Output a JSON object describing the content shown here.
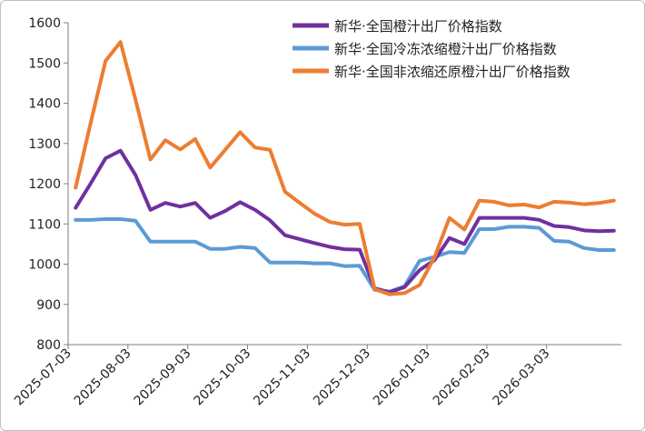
{
  "chart_data": {
    "type": "line",
    "title": "",
    "xlabel": "",
    "ylabel": "",
    "ylim": [
      800,
      1600
    ],
    "yticks": [
      800,
      900,
      1000,
      1100,
      1200,
      1300,
      1400,
      1500,
      1600
    ],
    "xtick_labels": [
      "2025-07-03",
      "2025-08-03",
      "2025-09-03",
      "2025-10-03",
      "2025-11-03",
      "2025-12-03",
      "2026-01-03",
      "2026-02-03",
      "2026-03-03"
    ],
    "xtick_indices": [
      0,
      4,
      8,
      12,
      16,
      20,
      24,
      28,
      32
    ],
    "grid": false,
    "legend_position": "top-right",
    "series": [
      {
        "name": "新华·全国橙汁出厂价格指数",
        "color": "#7030a0",
        "values": [
          1140,
          1200,
          1263,
          1282,
          1222,
          1135,
          1152,
          1143,
          1152,
          1115,
          1132,
          1154,
          1135,
          1109,
          1072,
          1062,
          1052,
          1043,
          1037,
          1036,
          940,
          930,
          943,
          985,
          1010,
          1065,
          1050,
          1115,
          1115,
          1115,
          1115,
          1110,
          1095,
          1092,
          1084,
          1082,
          1083
        ]
      },
      {
        "name": "新华·全国冷冻浓缩橙汁出厂价格指数",
        "color": "#5b9bd5",
        "values": [
          1110,
          1110,
          1112,
          1112,
          1108,
          1056,
          1056,
          1056,
          1056,
          1038,
          1038,
          1043,
          1040,
          1004,
          1004,
          1004,
          1002,
          1002,
          995,
          996,
          936,
          932,
          945,
          1008,
          1018,
          1030,
          1028,
          1087,
          1087,
          1093,
          1093,
          1090,
          1058,
          1056,
          1040,
          1035,
          1035
        ]
      },
      {
        "name": "新华·全国非浓缩还原橙汁出厂价格指数",
        "color": "#ed7d31",
        "values": [
          1190,
          1350,
          1505,
          1552,
          1410,
          1260,
          1308,
          1285,
          1311,
          1240,
          1284,
          1328,
          1290,
          1284,
          1180,
          1152,
          1125,
          1105,
          1098,
          1100,
          938,
          925,
          928,
          948,
          1017,
          1115,
          1086,
          1158,
          1155,
          1146,
          1148,
          1141,
          1155,
          1153,
          1149,
          1152,
          1158
        ]
      }
    ]
  }
}
